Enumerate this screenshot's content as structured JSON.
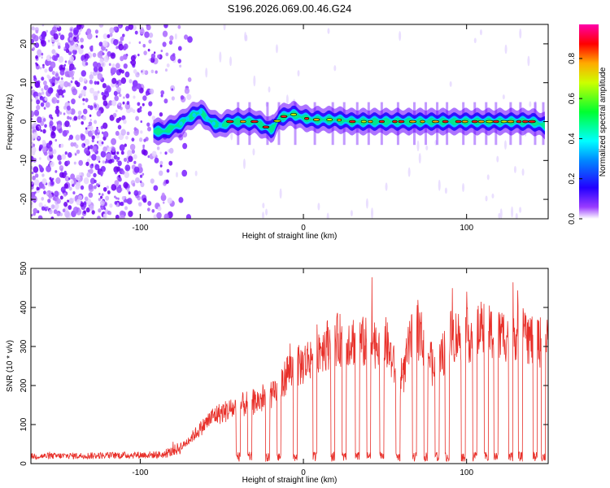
{
  "title": "S196.2026.069.00.46.G24",
  "chart_data": [
    {
      "type": "heatmap",
      "xlabel": "Height of straight line (km)",
      "ylabel": "Frequency (Hz)",
      "xlim": [
        -167,
        150
      ],
      "ylim": [
        -25,
        25
      ],
      "xticks": [
        -100,
        0,
        100
      ],
      "yticks": [
        -20,
        -10,
        0,
        10,
        20
      ],
      "xtick_labels": [
        "-100",
        "0",
        "100"
      ],
      "ytick_labels": [
        "-20",
        "-10",
        "0",
        "10",
        "20"
      ],
      "colorbar": {
        "label": "Normalized spectral amplitude",
        "range": [
          0,
          0.97
        ],
        "ticks": [
          0.0,
          0.2,
          0.4,
          0.6,
          0.8
        ],
        "tick_labels": [
          "0.0",
          "0.2",
          "0.4",
          "0.6",
          "0.8"
        ],
        "colors": [
          "#ffffff",
          "#8a00ff",
          "#0000ff",
          "#00ffff",
          "#00ff00",
          "#ffff00",
          "#ff0000",
          "#ff00aa"
        ]
      },
      "ridge": {
        "description_free": true,
        "x": [
          -92,
          -85,
          -80,
          -75,
          -72,
          -68,
          -63,
          -58,
          -55,
          -50,
          -45,
          -40,
          -35,
          -30,
          -25,
          -20,
          -18,
          -15,
          -10,
          -7,
          -4,
          0,
          5,
          10,
          20,
          30,
          40,
          50,
          60,
          70,
          80,
          90,
          100,
          110,
          120,
          130,
          140,
          148
        ],
        "freq_hz": [
          -2.5,
          -2.5,
          -1.5,
          -0.5,
          0.5,
          1.5,
          2.5,
          0.5,
          -0.5,
          -1.0,
          0.0,
          0.0,
          0.0,
          0.0,
          -1.0,
          -2.0,
          -1.5,
          1.0,
          1.5,
          2.0,
          1.5,
          1.0,
          0.5,
          0.5,
          0.5,
          0.0,
          0.0,
          0.0,
          0.0,
          0.0,
          0.0,
          0.0,
          0.0,
          0.0,
          0.0,
          0.0,
          0.0,
          -1.0
        ]
      },
      "noise_region_x": [
        -167,
        -75
      ]
    },
    {
      "type": "line",
      "xlabel": "Height of straight line (km)",
      "ylabel": "SNR (10 * v/v)",
      "xlim": [
        -167,
        150
      ],
      "ylim": [
        0,
        500
      ],
      "xticks": [
        -100,
        0,
        100
      ],
      "yticks": [
        0,
        100,
        200,
        300,
        400,
        500
      ],
      "xtick_labels": [
        "-100",
        "0",
        "100"
      ],
      "ytick_labels": [
        "0",
        "100",
        "200",
        "300",
        "400",
        "500"
      ],
      "color": "#e8302a",
      "envelope": {
        "x": [
          -167,
          -120,
          -85,
          -75,
          -65,
          -55,
          -45,
          -35,
          -25,
          -15,
          -10,
          -5,
          0,
          10,
          20,
          30,
          40,
          50,
          55,
          60,
          65,
          70,
          75,
          80,
          85,
          90,
          100,
          110,
          120,
          130,
          140,
          150
        ],
        "snr": [
          18,
          20,
          22,
          40,
          80,
          120,
          135,
          150,
          160,
          175,
          230,
          240,
          250,
          290,
          310,
          310,
          300,
          310,
          250,
          190,
          300,
          330,
          300,
          230,
          270,
          320,
          320,
          330,
          320,
          330,
          310,
          300
        ]
      },
      "dips_x": [
        -40,
        -33,
        -22,
        -15,
        -5,
        7,
        18,
        25,
        33,
        40,
        48,
        58,
        68,
        75,
        82,
        88,
        98,
        105,
        112,
        118,
        127,
        133,
        142,
        147
      ]
    }
  ]
}
